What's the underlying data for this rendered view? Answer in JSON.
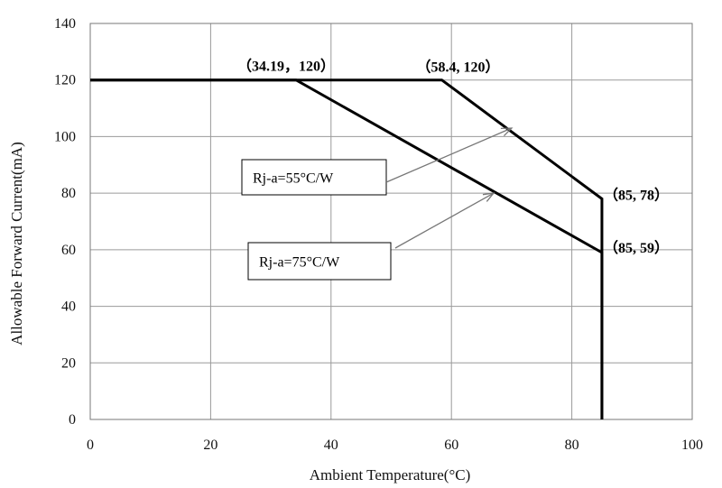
{
  "chart_data": {
    "type": "line",
    "xlabel": "Ambient Temperature(°C)",
    "ylabel": "Allowable Forward Current(mA)",
    "xlim": [
      0,
      100
    ],
    "ylim": [
      0,
      140
    ],
    "xticks": [
      "0",
      "20",
      "40",
      "60",
      "80",
      "100"
    ],
    "yticks": [
      "0",
      "20",
      "40",
      "60",
      "80",
      "100",
      "120",
      "140"
    ],
    "grid": true,
    "series": [
      {
        "name": "Rj-a=55°C/W",
        "x": [
          0,
          58.4,
          85,
          85
        ],
        "y": [
          120,
          120,
          78,
          0
        ]
      },
      {
        "name": "Rj-a=75°C/W",
        "x": [
          0,
          34.19,
          85,
          85
        ],
        "y": [
          120,
          120,
          59,
          0
        ]
      }
    ],
    "annotations": [
      {
        "text": "（34.19，120）",
        "x": 34.19,
        "y": 120
      },
      {
        "text": "（58.4, 120）",
        "x": 58.4,
        "y": 120
      },
      {
        "text": "（85, 78）",
        "x": 85,
        "y": 78
      },
      {
        "text": "（85, 59）",
        "x": 85,
        "y": 59
      }
    ],
    "callouts": [
      {
        "text": "Rj-a=55°C/W",
        "target": [
          70,
          103
        ]
      },
      {
        "text": "Rj-a=75°C/W",
        "target": [
          67,
          80
        ]
      }
    ]
  }
}
